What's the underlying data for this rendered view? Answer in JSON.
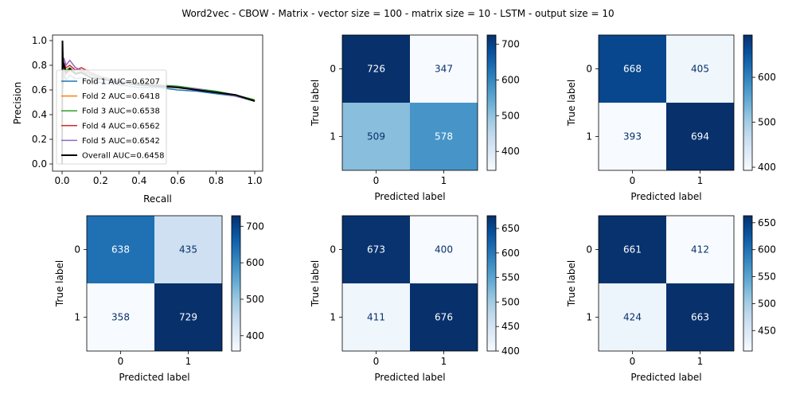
{
  "title": "Word2vec - CBOW - Matrix - vector size = 100 - matrix size = 10 - LSTM - output size = 10",
  "colors": {
    "blues_low": "#f7fbff",
    "blues_high": "#08306b"
  },
  "chart_data": [
    {
      "type": "line",
      "xlabel": "Recall",
      "ylabel": "Precision",
      "xlim": [
        0,
        1
      ],
      "ylim": [
        0,
        1
      ],
      "xticks": [
        "0.0",
        "0.2",
        "0.4",
        "0.6",
        "0.8",
        "1.0"
      ],
      "yticks": [
        "0.0",
        "0.2",
        "0.4",
        "0.6",
        "0.8",
        "1.0"
      ],
      "legend_position": "lower-left",
      "series": [
        {
          "name": "Fold 1 AUC=0.6207",
          "color": "#1f77b4",
          "x": [
            0.0,
            0.01,
            0.02,
            0.04,
            0.07,
            0.1,
            0.15,
            0.2,
            0.3,
            0.4,
            0.5,
            0.6,
            0.7,
            0.8,
            0.9,
            1.0
          ],
          "y": [
            0.55,
            0.73,
            0.68,
            0.72,
            0.69,
            0.7,
            0.67,
            0.66,
            0.64,
            0.62,
            0.62,
            0.6,
            0.59,
            0.57,
            0.55,
            0.51
          ]
        },
        {
          "name": "Fold 2 AUC=0.6418",
          "color": "#ff7f0e",
          "x": [
            0.0,
            0.01,
            0.02,
            0.04,
            0.07,
            0.1,
            0.15,
            0.2,
            0.3,
            0.4,
            0.5,
            0.6,
            0.7,
            0.8,
            0.9,
            1.0
          ],
          "y": [
            0.62,
            0.75,
            0.72,
            0.76,
            0.73,
            0.74,
            0.7,
            0.69,
            0.66,
            0.64,
            0.63,
            0.62,
            0.6,
            0.58,
            0.56,
            0.51
          ]
        },
        {
          "name": "Fold 3 AUC=0.6538",
          "color": "#2ca02c",
          "x": [
            0.0,
            0.01,
            0.02,
            0.04,
            0.07,
            0.1,
            0.15,
            0.2,
            0.3,
            0.4,
            0.5,
            0.6,
            0.7,
            0.8,
            0.9,
            1.0
          ],
          "y": [
            0.66,
            0.8,
            0.76,
            0.78,
            0.74,
            0.75,
            0.72,
            0.7,
            0.67,
            0.66,
            0.64,
            0.63,
            0.61,
            0.59,
            0.56,
            0.52
          ]
        },
        {
          "name": "Fold 4 AUC=0.6562",
          "color": "#d62728",
          "x": [
            0.0,
            0.01,
            0.02,
            0.04,
            0.07,
            0.1,
            0.15,
            0.2,
            0.3,
            0.4,
            0.5,
            0.6,
            0.7,
            0.8,
            0.9,
            1.0
          ],
          "y": [
            0.72,
            0.82,
            0.78,
            0.8,
            0.76,
            0.78,
            0.74,
            0.71,
            0.67,
            0.65,
            0.64,
            0.62,
            0.6,
            0.58,
            0.56,
            0.51
          ]
        },
        {
          "name": "Fold 5 AUC=0.6542",
          "color": "#9467bd",
          "x": [
            0.0,
            0.01,
            0.02,
            0.04,
            0.07,
            0.1,
            0.15,
            0.2,
            0.3,
            0.4,
            0.5,
            0.6,
            0.7,
            0.8,
            0.9,
            1.0
          ],
          "y": [
            0.7,
            0.86,
            0.8,
            0.84,
            0.78,
            0.76,
            0.73,
            0.71,
            0.67,
            0.65,
            0.64,
            0.62,
            0.61,
            0.58,
            0.55,
            0.51
          ]
        },
        {
          "name": "Overall AUC=0.6458",
          "color": "#000000",
          "x": [
            0.0,
            0.002,
            0.005,
            0.01,
            0.02,
            0.04,
            0.07,
            0.1,
            0.15,
            0.2,
            0.3,
            0.4,
            0.5,
            0.6,
            0.7,
            0.8,
            0.9,
            1.0
          ],
          "y": [
            0.0,
            1.0,
            0.78,
            0.8,
            0.74,
            0.77,
            0.73,
            0.74,
            0.7,
            0.69,
            0.66,
            0.64,
            0.63,
            0.62,
            0.6,
            0.58,
            0.56,
            0.51
          ]
        }
      ]
    },
    {
      "type": "heatmap",
      "xlabel": "Predicted label",
      "ylabel": "True label",
      "x_categories": [
        "0",
        "1"
      ],
      "y_categories": [
        "0",
        "1"
      ],
      "values": [
        [
          726,
          347
        ],
        [
          509,
          578
        ]
      ],
      "colorbar_ticks": [
        400,
        500,
        600,
        700
      ],
      "colorbar_range": [
        347,
        726
      ]
    },
    {
      "type": "heatmap",
      "xlabel": "Predicted label",
      "ylabel": "True label",
      "x_categories": [
        "0",
        "1"
      ],
      "y_categories": [
        "0",
        "1"
      ],
      "values": [
        [
          668,
          405
        ],
        [
          393,
          694
        ]
      ],
      "colorbar_ticks": [
        400,
        500,
        600
      ],
      "colorbar_range": [
        393,
        694
      ]
    },
    {
      "type": "heatmap",
      "xlabel": "Predicted label",
      "ylabel": "True label",
      "x_categories": [
        "0",
        "1"
      ],
      "y_categories": [
        "0",
        "1"
      ],
      "values": [
        [
          638,
          435
        ],
        [
          358,
          729
        ]
      ],
      "colorbar_ticks": [
        400,
        500,
        600,
        700
      ],
      "colorbar_range": [
        358,
        729
      ]
    },
    {
      "type": "heatmap",
      "xlabel": "Predicted label",
      "ylabel": "True label",
      "x_categories": [
        "0",
        "1"
      ],
      "y_categories": [
        "0",
        "1"
      ],
      "values": [
        [
          673,
          400
        ],
        [
          411,
          676
        ]
      ],
      "colorbar_ticks": [
        400,
        450,
        500,
        550,
        600,
        650
      ],
      "colorbar_range": [
        400,
        676
      ]
    },
    {
      "type": "heatmap",
      "xlabel": "Predicted label",
      "ylabel": "True label",
      "x_categories": [
        "0",
        "1"
      ],
      "y_categories": [
        "0",
        "1"
      ],
      "values": [
        [
          661,
          412
        ],
        [
          424,
          663
        ]
      ],
      "colorbar_ticks": [
        450,
        500,
        550,
        600,
        650
      ],
      "colorbar_range": [
        412,
        663
      ]
    }
  ]
}
